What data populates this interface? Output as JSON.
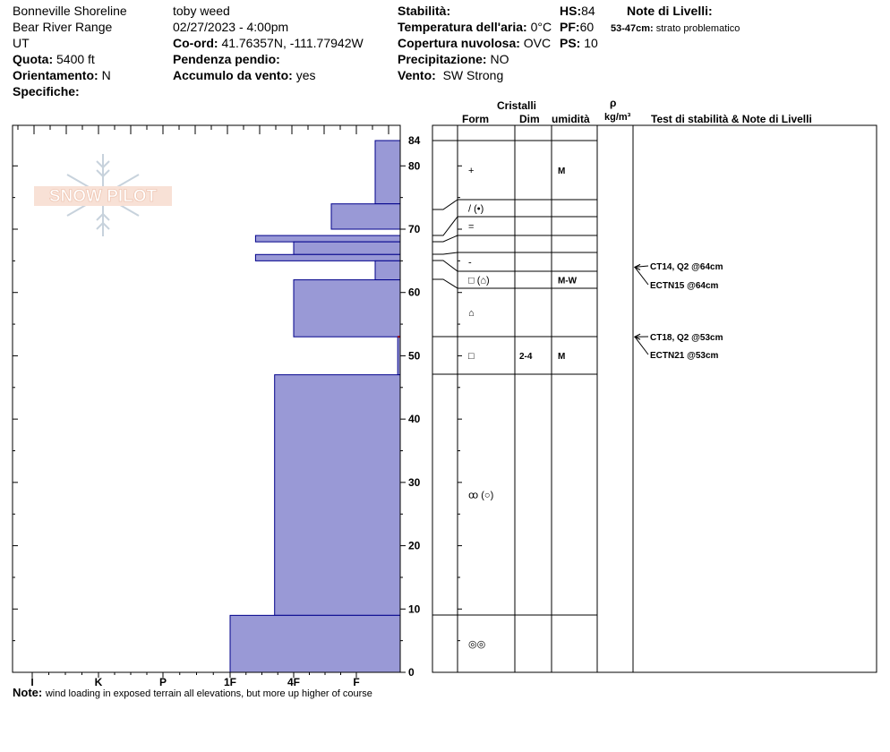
{
  "header": {
    "location": "Bonneville Shoreline",
    "range": "Bear River Range",
    "state": "UT",
    "quota_label": "Quota:",
    "quota": "5400 ft",
    "orient_label": "Orientamento:",
    "orient": "N",
    "specifiche_label": "Specifiche:",
    "observer": "toby weed",
    "datetime": "02/27/2023 - 4:00pm",
    "coord_label": "Co-ord:",
    "coord": "41.76357N, -111.77942W",
    "pendenza_label": "Pendenza pendio:",
    "accumulo_label": "Accumulo da vento:",
    "accumulo": "yes",
    "stabilita_label": "Stabilità:",
    "temp_label": "Temperatura dell'aria:",
    "temp": "0°C",
    "cop_label": "Copertura nuvolosa:",
    "cop": "OVC",
    "precip_label": "Precipitazione:",
    "precip": "NO",
    "vento_label": "Vento:",
    "vento": "SW Strong",
    "hs_label": "HS:",
    "hs": "84",
    "pf_label": "PF:",
    "pf": "60",
    "ps_label": "PS:",
    "ps": "10",
    "note_livelli_label": "Note di Livelli:",
    "note_livelli_range": "53-47cm:",
    "note_livelli_text": "strato problematico"
  },
  "columns": {
    "cristalli": "Cristalli",
    "form": "Form",
    "dim": "Dim",
    "umidita": "umidità",
    "rho": "ρ",
    "density_unit": "kg/m³",
    "tests": "Test di stabilità & Note di Livelli"
  },
  "footer": {
    "note_label": "Note:",
    "note": "wind loading in exposed terrain all elevations, but more up higher of course"
  },
  "logo_text": "SNOW PILOT",
  "colors": {
    "layer_fill": "#9999d6",
    "layer_stroke": "#00008b",
    "problem_layer": "#aa0000"
  },
  "chart_data": {
    "type": "snow-profile",
    "hardness_scale": [
      "I",
      "K",
      "P",
      "1F",
      "4F",
      "F"
    ],
    "yticks": [
      0,
      10,
      20,
      30,
      40,
      50,
      60,
      70,
      80,
      84
    ],
    "ylim": [
      0,
      84
    ],
    "layers": [
      {
        "top": 84,
        "bottom": 74,
        "hardness_index": 5.3
      },
      {
        "top": 74,
        "bottom": 70,
        "hardness_index": 4.6
      },
      {
        "top": 69,
        "bottom": 68,
        "hardness_index": 3.4
      },
      {
        "top": 68,
        "bottom": 66,
        "hardness_index": 4.0
      },
      {
        "top": 66,
        "bottom": 65,
        "hardness_index": 3.4
      },
      {
        "top": 65,
        "bottom": 62,
        "hardness_index": 5.3
      },
      {
        "top": 62,
        "bottom": 53,
        "hardness_index": 4.0
      },
      {
        "top": 53,
        "bottom": 47,
        "hardness_index": 5.66
      },
      {
        "top": 47,
        "bottom": 9,
        "hardness_index": 3.7
      },
      {
        "top": 9,
        "bottom": 0,
        "hardness_index": 3.0
      }
    ],
    "problem_layer_depth": 53,
    "crystal_rows": [
      {
        "top": 84,
        "bottom": 74,
        "form": "+",
        "dim": "",
        "moisture": "M"
      },
      {
        "top": 74,
        "bottom": 71,
        "form": "/ (•)",
        "dim": "",
        "moisture": ""
      },
      {
        "top": 71,
        "bottom": 68,
        "form": "=",
        "dim": "",
        "moisture": ""
      },
      {
        "top": 68,
        "bottom": 66,
        "form": "",
        "dim": "",
        "moisture": ""
      },
      {
        "top": 66,
        "bottom": 63,
        "form": "-",
        "dim": "",
        "moisture": ""
      },
      {
        "top": 63,
        "bottom": 61,
        "form": "□ (⌂)",
        "dim": "",
        "moisture": "M-W"
      },
      {
        "top": 61,
        "bottom": 53,
        "form": "⌂",
        "dim": "",
        "moisture": ""
      },
      {
        "top": 53,
        "bottom": 47,
        "form": "□",
        "dim": "2-4",
        "moisture": "M"
      },
      {
        "top": 47,
        "bottom": 9,
        "form": "ꝏ (○)",
        "dim": "",
        "moisture": ""
      },
      {
        "top": 9,
        "bottom": 0,
        "form": "◎◎",
        "dim": "",
        "moisture": ""
      }
    ],
    "tests": [
      {
        "depth": 64,
        "labels": [
          "CT14, Q2 @64cm",
          "ECTN15 @64cm"
        ]
      },
      {
        "depth": 53,
        "labels": [
          "CT18, Q2 @53cm",
          "ECTN21 @53cm"
        ]
      }
    ]
  }
}
